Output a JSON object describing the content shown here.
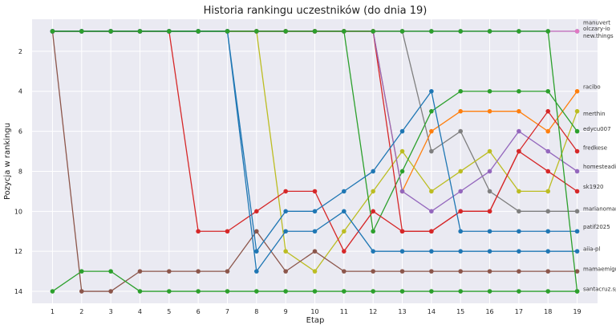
{
  "chart_data": {
    "type": "line",
    "title": "Historia rankingu uczestników (do dnia 19)",
    "xlabel": "Etap",
    "ylabel": "Pozycja w rankingu",
    "x": [
      1,
      2,
      3,
      4,
      5,
      6,
      7,
      8,
      9,
      10,
      11,
      12,
      13,
      14,
      15,
      16,
      17,
      18,
      19
    ],
    "xlim": [
      0.3,
      19.7
    ],
    "ylim": [
      14.6,
      0.4
    ],
    "y_inverted": true,
    "yticks": [
      2,
      4,
      6,
      8,
      10,
      12,
      14
    ],
    "grid": true,
    "background": "#eaeaf2",
    "series": [
      {
        "name": "manuvert",
        "color": "#17becf",
        "values": [
          1,
          1,
          1,
          1,
          1,
          1,
          1,
          1,
          1,
          1,
          1,
          1,
          1,
          1,
          1,
          1,
          1,
          1,
          1
        ]
      },
      {
        "name": "olczary-io",
        "color": "#7f7f7f",
        "values": [
          1,
          1,
          1,
          1,
          1,
          1,
          1,
          1,
          1,
          1,
          1,
          1,
          1,
          7,
          6,
          9,
          10,
          10,
          10
        ]
      },
      {
        "name": "new.things",
        "color": "#e377c2",
        "values": [
          1,
          1,
          1,
          1,
          1,
          1,
          1,
          1,
          1,
          1,
          1,
          1,
          1,
          1,
          1,
          1,
          1,
          1,
          1
        ]
      },
      {
        "name": "racibo",
        "color": "#ff7f0e",
        "values": [
          1,
          1,
          1,
          1,
          1,
          1,
          1,
          1,
          1,
          1,
          1,
          1,
          9,
          6,
          5,
          5,
          5,
          6,
          4
        ]
      },
      {
        "name": "merthin",
        "color": "#bcbd22",
        "values": [
          1,
          1,
          1,
          1,
          1,
          1,
          1,
          1,
          12,
          13,
          11,
          9,
          7,
          9,
          8,
          7,
          9,
          9,
          5
        ]
      },
      {
        "name": "edycu007",
        "color": "#2ca02c",
        "values": [
          1,
          1,
          1,
          1,
          1,
          1,
          1,
          1,
          1,
          1,
          1,
          11,
          8,
          5,
          4,
          4,
          4,
          4,
          6
        ]
      },
      {
        "name": "fredkese",
        "color": "#d62728",
        "values": [
          1,
          1,
          1,
          1,
          1,
          1,
          1,
          1,
          1,
          1,
          1,
          1,
          11,
          11,
          10,
          10,
          7,
          8,
          9
        ]
      },
      {
        "name": "homesteadit",
        "color": "#9467bd",
        "values": [
          1,
          1,
          1,
          1,
          1,
          1,
          1,
          1,
          1,
          1,
          1,
          1,
          9,
          10,
          9,
          8,
          6,
          7,
          8
        ]
      },
      {
        "name": "sk1920",
        "color": "#d62728",
        "values": [
          1,
          1,
          1,
          1,
          1,
          11,
          11,
          10,
          9,
          9,
          12,
          10,
          11,
          11,
          10,
          10,
          7,
          5,
          7
        ]
      },
      {
        "name": "marianomariano",
        "color": "#8c564b",
        "values": [
          1,
          14,
          14,
          13,
          13,
          13,
          13,
          11,
          13,
          12,
          13,
          13,
          13,
          13,
          13,
          13,
          13,
          13,
          13
        ]
      },
      {
        "name": "patif2025",
        "color": "#1f77b4",
        "values": [
          1,
          1,
          1,
          1,
          1,
          1,
          1,
          13,
          11,
          11,
          10,
          12,
          12,
          12,
          12,
          12,
          12,
          12,
          12
        ]
      },
      {
        "name": "aiia-pl",
        "color": "#1f77b4",
        "values": [
          1,
          1,
          1,
          1,
          1,
          1,
          1,
          12,
          10,
          10,
          9,
          8,
          6,
          4,
          11,
          11,
          11,
          11,
          11
        ]
      },
      {
        "name": "mamaemigrantefit",
        "color": "#2ca02c",
        "values": [
          14,
          13,
          13,
          14,
          14,
          14,
          14,
          14,
          14,
          14,
          14,
          14,
          14,
          14,
          14,
          14,
          14,
          14,
          14
        ]
      },
      {
        "name": "santacruz.sports",
        "color": "#2ca02c",
        "values": [
          1,
          1,
          1,
          1,
          1,
          1,
          1,
          1,
          1,
          1,
          1,
          1,
          1,
          1,
          1,
          1,
          1,
          1,
          14
        ]
      }
    ],
    "end_labels": [
      {
        "text": "manuvert",
        "y": 0.55,
        "color": "#333333"
      },
      {
        "text": "olczary-io",
        "y": 0.85,
        "color": "#333333"
      },
      {
        "text": "new.things",
        "y": 1.2,
        "color": "#333333"
      },
      {
        "text": "racibo",
        "y": 3.75,
        "color": "#333333"
      },
      {
        "text": "merthin",
        "y": 5.1,
        "color": "#333333"
      },
      {
        "text": "edycu007",
        "y": 5.85,
        "color": "#333333"
      },
      {
        "text": "fredkese",
        "y": 6.8,
        "color": "#333333"
      },
      {
        "text": "homesteadit",
        "y": 7.75,
        "color": "#333333"
      },
      {
        "text": "sk1920",
        "y": 8.75,
        "color": "#333333"
      },
      {
        "text": "marianomariano",
        "y": 9.85,
        "color": "#333333"
      },
      {
        "text": "patif2025",
        "y": 10.75,
        "color": "#333333"
      },
      {
        "text": "aiia-pl",
        "y": 11.85,
        "color": "#333333"
      },
      {
        "text": "mamaemigrantefit",
        "y": 12.85,
        "color": "#333333"
      },
      {
        "text": "santacruz.sports",
        "y": 13.85,
        "color": "#333333"
      }
    ]
  }
}
